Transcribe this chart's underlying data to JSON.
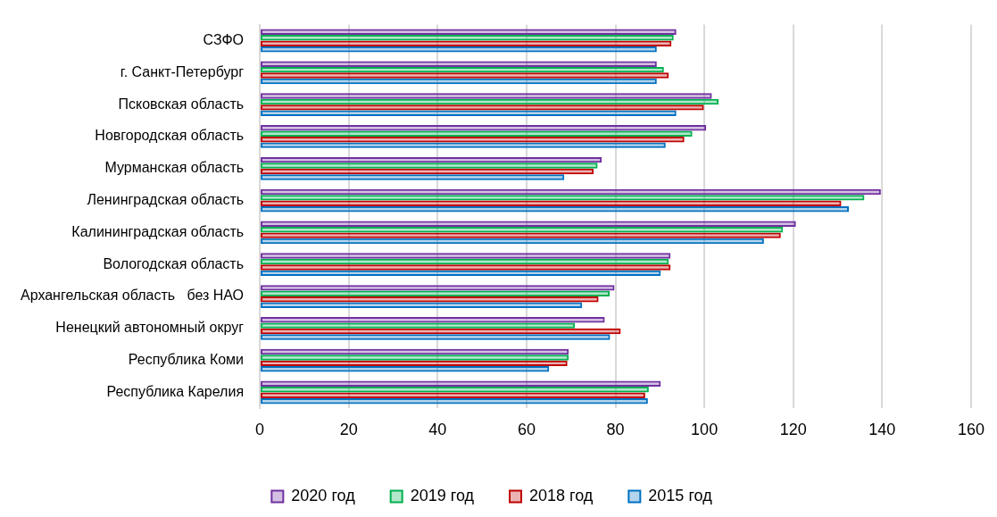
{
  "chart_data": {
    "type": "bar",
    "orientation": "horizontal",
    "categories": [
      "СЗФО",
      "г. Санкт-Петербург",
      "Псковская область",
      "Новгородская область",
      "Мурманская область",
      "Ленинградская область",
      "Калининградская область",
      "Вологодская область",
      "Архангельская область   без НАО",
      "Ненецкий автономный округ",
      "Республика Коми",
      "Республика Карелия"
    ],
    "series": [
      {
        "name": "2020 год",
        "color": "#7030a0",
        "values": [
          93.7,
          89.3,
          101.7,
          100.4,
          76.9,
          139.7,
          120.6,
          92.4,
          79.8,
          77.6,
          69.5,
          90.2
        ]
      },
      {
        "name": "2019 год",
        "color": "#00b050",
        "values": [
          93.1,
          90.9,
          103.2,
          97.3,
          76.0,
          136.0,
          117.7,
          92.0,
          78.7,
          70.9,
          69.5,
          87.5
        ]
      },
      {
        "name": "2018 год",
        "color": "#c00000",
        "values": [
          92.6,
          92.0,
          99.9,
          95.5,
          75.1,
          130.8,
          117.2,
          92.4,
          76.2,
          81.2,
          69.2,
          86.7
        ]
      },
      {
        "name": "2015 год",
        "color": "#0070c0",
        "values": [
          89.3,
          89.3,
          93.7,
          91.3,
          68.5,
          132.5,
          113.4,
          90.2,
          72.5,
          78.8,
          65.1,
          87.3
        ]
      }
    ],
    "xlim": [
      0,
      160
    ],
    "xticks": [
      0,
      20,
      40,
      60,
      80,
      100,
      120,
      140,
      160
    ],
    "grid": "x",
    "legend": "bottom"
  }
}
